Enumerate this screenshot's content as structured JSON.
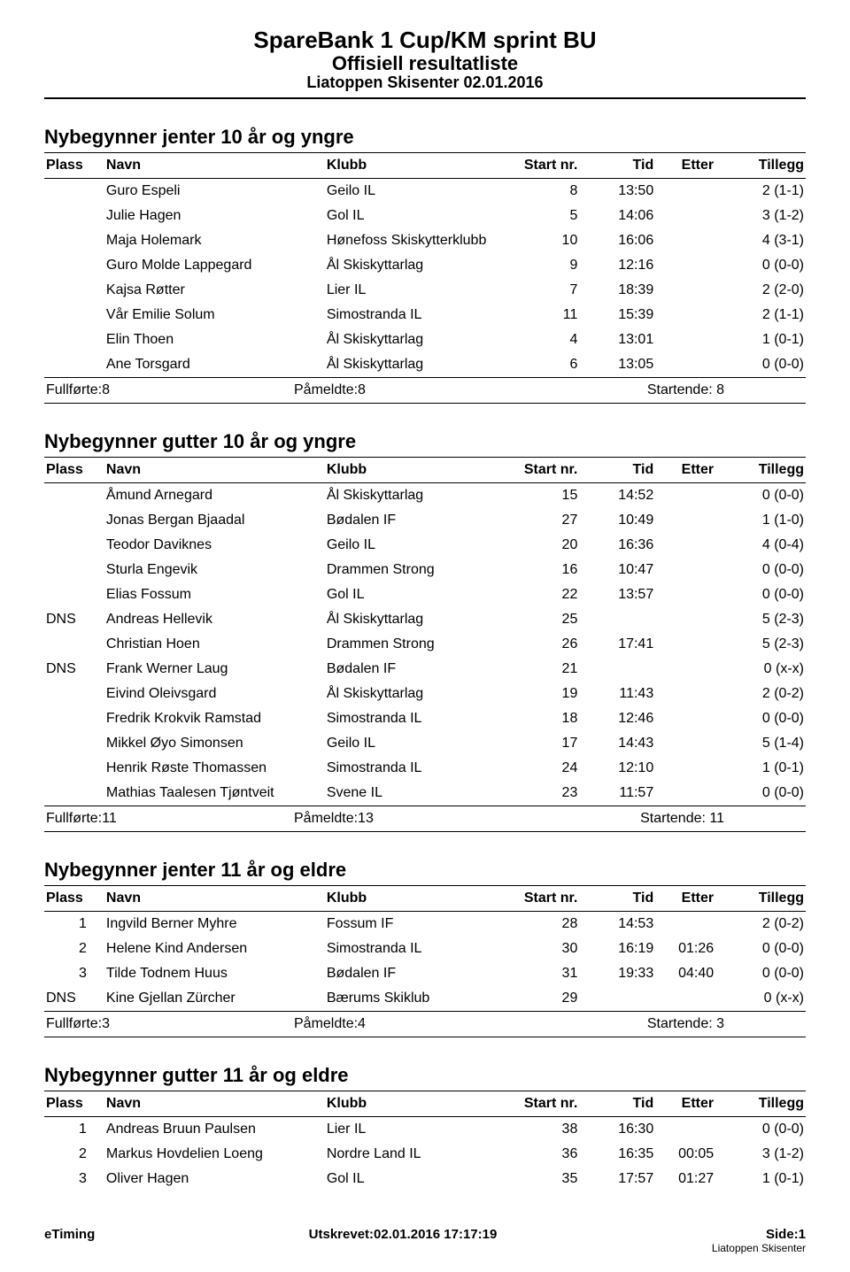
{
  "header": {
    "line1": "SpareBank 1 Cup/KM sprint BU",
    "line2": "Offisiell resultatliste",
    "line3": "Liatoppen Skisenter 02.01.2016"
  },
  "columns": {
    "plass": "Plass",
    "navn": "Navn",
    "klubb": "Klubb",
    "start": "Start nr.",
    "tid": "Tid",
    "etter": "Etter",
    "tillegg": "Tillegg"
  },
  "sections": [
    {
      "title": "Nybegynner jenter 10 år og yngre",
      "rows": [
        {
          "plass": "",
          "navn": "Guro Espeli",
          "klubb": "Geilo IL",
          "start": "8",
          "tid": "13:50",
          "etter": "",
          "tillegg": "2 (1-1)"
        },
        {
          "plass": "",
          "navn": "Julie Hagen",
          "klubb": "Gol IL",
          "start": "5",
          "tid": "14:06",
          "etter": "",
          "tillegg": "3 (1-2)"
        },
        {
          "plass": "",
          "navn": "Maja Holemark",
          "klubb": "Hønefoss Skiskytterklubb",
          "start": "10",
          "tid": "16:06",
          "etter": "",
          "tillegg": "4 (3-1)"
        },
        {
          "plass": "",
          "navn": "Guro Molde Lappegard",
          "klubb": "Ål Skiskyttarlag",
          "start": "9",
          "tid": "12:16",
          "etter": "",
          "tillegg": "0 (0-0)"
        },
        {
          "plass": "",
          "navn": "Kajsa Røtter",
          "klubb": "Lier IL",
          "start": "7",
          "tid": "18:39",
          "etter": "",
          "tillegg": "2 (2-0)"
        },
        {
          "plass": "",
          "navn": "Vår Emilie Solum",
          "klubb": "Simostranda IL",
          "start": "11",
          "tid": "15:39",
          "etter": "",
          "tillegg": "2 (1-1)"
        },
        {
          "plass": "",
          "navn": "Elin Thoen",
          "klubb": "Ål Skiskyttarlag",
          "start": "4",
          "tid": "13:01",
          "etter": "",
          "tillegg": "1 (0-1)"
        },
        {
          "plass": "",
          "navn": "Ane Torsgard",
          "klubb": "Ål Skiskyttarlag",
          "start": "6",
          "tid": "13:05",
          "etter": "",
          "tillegg": "0 (0-0)"
        }
      ],
      "summary": {
        "fullforte": "Fullførte:8",
        "pameldte": "Påmeldte:8",
        "startende": "Startende: 8"
      }
    },
    {
      "title": "Nybegynner gutter 10 år og yngre",
      "rows": [
        {
          "plass": "",
          "navn": "Åmund Arnegard",
          "klubb": "Ål Skiskyttarlag",
          "start": "15",
          "tid": "14:52",
          "etter": "",
          "tillegg": "0 (0-0)"
        },
        {
          "plass": "",
          "navn": "Jonas Bergan Bjaadal",
          "klubb": "Bødalen IF",
          "start": "27",
          "tid": "10:49",
          "etter": "",
          "tillegg": "1 (1-0)"
        },
        {
          "plass": "",
          "navn": "Teodor Daviknes",
          "klubb": "Geilo IL",
          "start": "20",
          "tid": "16:36",
          "etter": "",
          "tillegg": "4 (0-4)"
        },
        {
          "plass": "",
          "navn": "Sturla Engevik",
          "klubb": "Drammen Strong",
          "start": "16",
          "tid": "10:47",
          "etter": "",
          "tillegg": "0 (0-0)"
        },
        {
          "plass": "",
          "navn": "Elias Fossum",
          "klubb": "Gol IL",
          "start": "22",
          "tid": "13:57",
          "etter": "",
          "tillegg": "0 (0-0)"
        },
        {
          "plass": "DNS",
          "navn": "Andreas Hellevik",
          "klubb": "Ål Skiskyttarlag",
          "start": "25",
          "tid": "",
          "etter": "",
          "tillegg": "5 (2-3)"
        },
        {
          "plass": "",
          "navn": "Christian Hoen",
          "klubb": "Drammen Strong",
          "start": "26",
          "tid": "17:41",
          "etter": "",
          "tillegg": "5 (2-3)"
        },
        {
          "plass": "DNS",
          "navn": "Frank Werner Laug",
          "klubb": "Bødalen IF",
          "start": "21",
          "tid": "",
          "etter": "",
          "tillegg": "0 (x-x)"
        },
        {
          "plass": "",
          "navn": "Eivind Oleivsgard",
          "klubb": "Ål Skiskyttarlag",
          "start": "19",
          "tid": "11:43",
          "etter": "",
          "tillegg": "2 (0-2)"
        },
        {
          "plass": "",
          "navn": "Fredrik Krokvik Ramstad",
          "klubb": "Simostranda IL",
          "start": "18",
          "tid": "12:46",
          "etter": "",
          "tillegg": "0 (0-0)"
        },
        {
          "plass": "",
          "navn": "Mikkel Øyo Simonsen",
          "klubb": "Geilo IL",
          "start": "17",
          "tid": "14:43",
          "etter": "",
          "tillegg": "5 (1-4)"
        },
        {
          "plass": "",
          "navn": "Henrik Røste Thomassen",
          "klubb": "Simostranda IL",
          "start": "24",
          "tid": "12:10",
          "etter": "",
          "tillegg": "1 (0-1)"
        },
        {
          "plass": "",
          "navn": "Mathias Taalesen Tjøntveit",
          "klubb": "Svene IL",
          "start": "23",
          "tid": "11:57",
          "etter": "",
          "tillegg": "0 (0-0)"
        }
      ],
      "summary": {
        "fullforte": "Fullførte:11",
        "pameldte": "Påmeldte:13",
        "startende": "Startende: 11"
      }
    },
    {
      "title": "Nybegynner jenter 11 år og eldre",
      "rows": [
        {
          "plass": "1",
          "navn": "Ingvild Berner Myhre",
          "klubb": "Fossum IF",
          "start": "28",
          "tid": "14:53",
          "etter": "",
          "tillegg": "2 (0-2)"
        },
        {
          "plass": "2",
          "navn": "Helene Kind Andersen",
          "klubb": "Simostranda IL",
          "start": "30",
          "tid": "16:19",
          "etter": "01:26",
          "tillegg": "0 (0-0)"
        },
        {
          "plass": "3",
          "navn": "Tilde Todnem Huus",
          "klubb": "Bødalen IF",
          "start": "31",
          "tid": "19:33",
          "etter": "04:40",
          "tillegg": "0 (0-0)"
        },
        {
          "plass": "DNS",
          "navn": "Kine Gjellan Zürcher",
          "klubb": "Bærums Skiklub",
          "start": "29",
          "tid": "",
          "etter": "",
          "tillegg": "0 (x-x)"
        }
      ],
      "summary": {
        "fullforte": "Fullførte:3",
        "pameldte": "Påmeldte:4",
        "startende": "Startende: 3"
      }
    },
    {
      "title": "Nybegynner gutter 11 år og eldre",
      "rows": [
        {
          "plass": "1",
          "navn": "Andreas Bruun Paulsen",
          "klubb": "Lier IL",
          "start": "38",
          "tid": "16:30",
          "etter": "",
          "tillegg": "0 (0-0)"
        },
        {
          "plass": "2",
          "navn": "Markus Hovdelien Loeng",
          "klubb": "Nordre Land IL",
          "start": "36",
          "tid": "16:35",
          "etter": "00:05",
          "tillegg": "3 (1-2)"
        },
        {
          "plass": "3",
          "navn": "Oliver Hagen",
          "klubb": "Gol IL",
          "start": "35",
          "tid": "17:57",
          "etter": "01:27",
          "tillegg": "1 (0-1)"
        }
      ],
      "summary": null
    }
  ],
  "footer": {
    "left": "eTiming",
    "center": "Utskrevet:02.01.2016 17:17:19",
    "right": "Side:1",
    "right_small": "Liatoppen Skisenter"
  }
}
